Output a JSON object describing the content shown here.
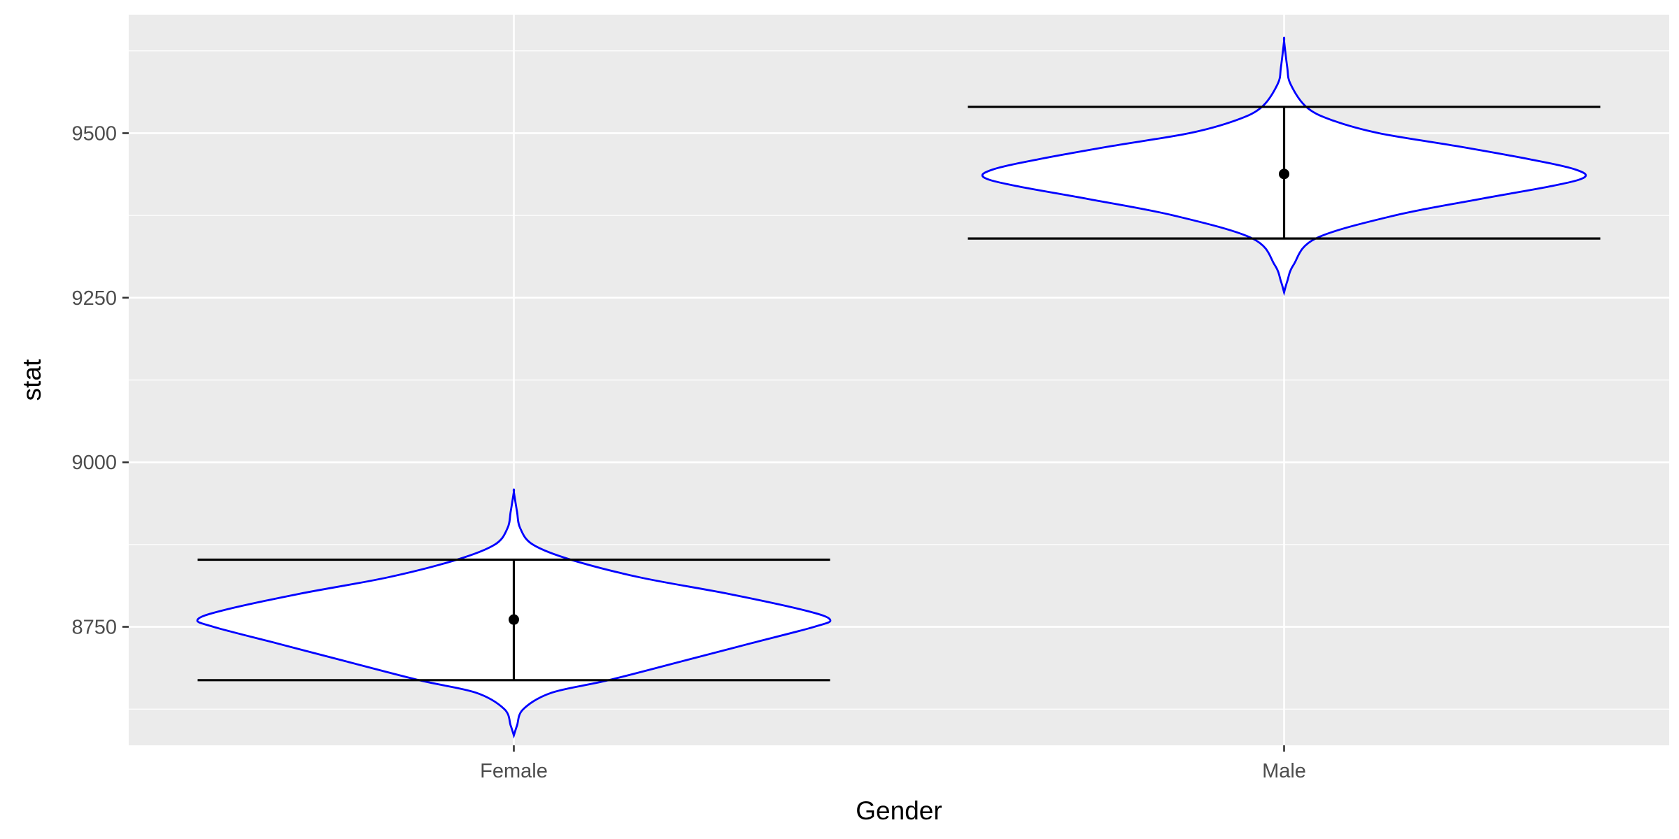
{
  "chart_data": {
    "type": "violin",
    "xlabel": "Gender",
    "ylabel": "stat",
    "categories": [
      "Female",
      "Male"
    ],
    "ylim": [
      8570,
      9680
    ],
    "yticks": [
      8750,
      9000,
      9250,
      9500
    ],
    "grid": true,
    "groups": [
      {
        "name": "Female",
        "mean": 8761,
        "lower": 8669,
        "upper": 8852,
        "min": 8585,
        "max": 8955,
        "density_profile": [
          [
            8585,
            0.0
          ],
          [
            8600,
            0.01
          ],
          [
            8625,
            0.03
          ],
          [
            8650,
            0.12
          ],
          [
            8669,
            0.3
          ],
          [
            8700,
            0.55
          ],
          [
            8725,
            0.75
          ],
          [
            8750,
            0.95
          ],
          [
            8761,
            1.0
          ],
          [
            8775,
            0.92
          ],
          [
            8800,
            0.68
          ],
          [
            8825,
            0.4
          ],
          [
            8852,
            0.18
          ],
          [
            8875,
            0.06
          ],
          [
            8900,
            0.02
          ],
          [
            8925,
            0.01
          ],
          [
            8955,
            0.0
          ]
        ]
      },
      {
        "name": "Male",
        "mean": 9438,
        "lower": 9340,
        "upper": 9540,
        "min": 9258,
        "max": 9640,
        "density_profile": [
          [
            9258,
            0.0
          ],
          [
            9275,
            0.01
          ],
          [
            9300,
            0.03
          ],
          [
            9340,
            0.1
          ],
          [
            9375,
            0.35
          ],
          [
            9400,
            0.62
          ],
          [
            9420,
            0.85
          ],
          [
            9433,
            0.95
          ],
          [
            9445,
            0.92
          ],
          [
            9460,
            0.78
          ],
          [
            9480,
            0.55
          ],
          [
            9500,
            0.3
          ],
          [
            9520,
            0.15
          ],
          [
            9540,
            0.07
          ],
          [
            9575,
            0.02
          ],
          [
            9600,
            0.01
          ],
          [
            9640,
            0.0
          ]
        ]
      }
    ],
    "colors": {
      "panel": "#ebebeb",
      "grid": "#ffffff",
      "violin_stroke": "#0000ff",
      "violin_fill": "#ffffff",
      "errorbar": "#000000"
    }
  }
}
